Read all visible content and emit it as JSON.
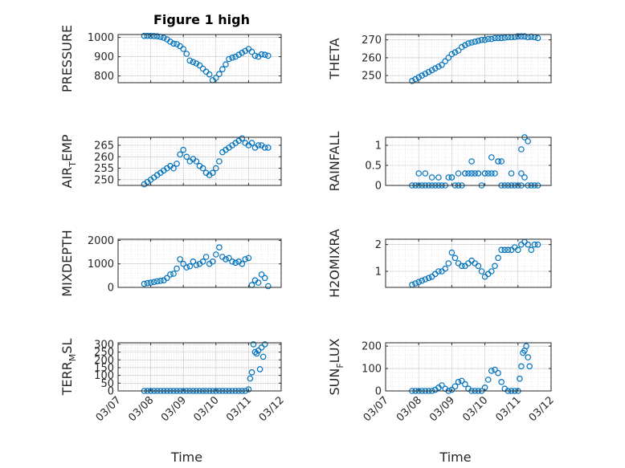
{
  "title": "Figure 1 high",
  "colors": {
    "marker": "#0072BD",
    "axis": "#262626",
    "grid": "#b0b0b0"
  },
  "x_ticks": [
    "03/07",
    "03/08",
    "03/09",
    "03/10",
    "03/11",
    "03/12"
  ],
  "x_label": "Time",
  "chart_data": [
    {
      "type": "scatter",
      "marker": "circle-open",
      "grid": "on",
      "ylabel": "PRESSURE",
      "yticks": [
        800,
        900,
        1000
      ],
      "ylim": [
        765,
        1015
      ],
      "xlim": [
        0,
        5
      ],
      "x": [
        0.8,
        0.9,
        1.0,
        1.1,
        1.2,
        1.3,
        1.4,
        1.5,
        1.6,
        1.7,
        1.8,
        1.9,
        2.0,
        2.1,
        2.2,
        2.3,
        2.4,
        2.5,
        2.6,
        2.7,
        2.8,
        2.9,
        3.0,
        3.1,
        3.2,
        3.3,
        3.4,
        3.5,
        3.6,
        3.7,
        3.8,
        3.9,
        4.0,
        4.1,
        4.2,
        4.3,
        4.4,
        4.5,
        4.6
      ],
      "y": [
        1008,
        1008,
        1008,
        1007,
        1006,
        1003,
        998,
        990,
        978,
        968,
        965,
        955,
        940,
        915,
        880,
        872,
        865,
        855,
        838,
        822,
        808,
        778,
        790,
        810,
        835,
        860,
        888,
        895,
        900,
        910,
        920,
        930,
        940,
        925,
        905,
        900,
        912,
        910,
        905
      ]
    },
    {
      "type": "scatter",
      "marker": "circle-open",
      "grid": "on",
      "ylabel": "THETA",
      "yticks": [
        250,
        260,
        270
      ],
      "ylim": [
        246,
        273
      ],
      "xlim": [
        0,
        5
      ],
      "x": [
        0.8,
        0.9,
        1.0,
        1.1,
        1.2,
        1.3,
        1.4,
        1.5,
        1.6,
        1.7,
        1.8,
        1.9,
        2.0,
        2.1,
        2.2,
        2.3,
        2.4,
        2.5,
        2.6,
        2.7,
        2.8,
        2.9,
        3.0,
        3.1,
        3.2,
        3.3,
        3.4,
        3.5,
        3.6,
        3.7,
        3.8,
        3.9,
        4.0,
        4.1,
        4.2,
        4.3,
        4.4,
        4.5,
        4.6
      ],
      "y": [
        247,
        248,
        249,
        250,
        251,
        252,
        253,
        254,
        255,
        256,
        258,
        260,
        262,
        263,
        264,
        266,
        267,
        268,
        268.5,
        269,
        269.5,
        270,
        270,
        270.5,
        270.5,
        271,
        271,
        271,
        271.2,
        271.5,
        271.5,
        271.7,
        272,
        272,
        272,
        271.5,
        271.8,
        271.5,
        271
      ]
    },
    {
      "type": "scatter",
      "marker": "circle-open",
      "grid": "on",
      "ylabel": "AIR_TEMP",
      "yticks": [
        250,
        255,
        260,
        265
      ],
      "ylim": [
        247.5,
        268.5
      ],
      "xlim": [
        0,
        5
      ],
      "x": [
        0.8,
        0.9,
        1.0,
        1.1,
        1.2,
        1.3,
        1.4,
        1.5,
        1.6,
        1.7,
        1.8,
        1.9,
        2.0,
        2.1,
        2.2,
        2.3,
        2.4,
        2.5,
        2.6,
        2.7,
        2.8,
        2.9,
        3.0,
        3.1,
        3.2,
        3.3,
        3.4,
        3.5,
        3.6,
        3.7,
        3.8,
        3.9,
        4.0,
        4.1,
        4.2,
        4.3,
        4.4,
        4.5,
        4.6
      ],
      "y": [
        248,
        249,
        250,
        251,
        252,
        253,
        254,
        255,
        256,
        255,
        257,
        261,
        263,
        260,
        258,
        259,
        258,
        256,
        255,
        253,
        252,
        253,
        255,
        258,
        262,
        263,
        264,
        265,
        266,
        267,
        268,
        266,
        265,
        266,
        264,
        265,
        265,
        264,
        264
      ]
    },
    {
      "type": "scatter",
      "marker": "circle-open",
      "grid": "on",
      "ylabel": "RAINFALL",
      "yticks": [
        0,
        0.5,
        1
      ],
      "ylim": [
        0,
        1.2
      ],
      "xlim": [
        0,
        5
      ],
      "x": [
        0.8,
        0.9,
        1.0,
        1.1,
        1.2,
        1.3,
        1.4,
        1.5,
        1.6,
        1.7,
        1.8,
        1.9,
        2.0,
        2.1,
        2.2,
        2.3,
        2.4,
        2.5,
        2.6,
        2.7,
        2.8,
        2.9,
        3.0,
        3.1,
        3.2,
        3.3,
        3.4,
        3.5,
        3.6,
        3.7,
        3.8,
        3.9,
        4.0,
        4.1,
        4.2,
        4.3,
        4.4,
        4.5,
        4.6,
        1.0,
        1.2,
        1.4,
        1.6,
        2.0,
        2.2,
        2.4,
        2.6,
        2.8,
        3.0,
        3.2,
        3.4,
        3.5,
        3.8,
        4.1,
        4.2,
        4.3,
        4.1,
        2.6
      ],
      "y": [
        0,
        0,
        0,
        0,
        0,
        0,
        0,
        0,
        0,
        0,
        0,
        0.2,
        0.2,
        0,
        0,
        0,
        0.3,
        0.3,
        0.3,
        0.3,
        0.3,
        0,
        0.3,
        0.3,
        0.3,
        0.3,
        0.6,
        0,
        0,
        0,
        0,
        0,
        0,
        0,
        0.2,
        0,
        0,
        0,
        0,
        0.3,
        0.3,
        0.2,
        0.2,
        0.2,
        0.3,
        0.3,
        0.3,
        0.3,
        0.3,
        0.7,
        0.6,
        0.6,
        0.3,
        0.3,
        1.2,
        1.1,
        0.9,
        0.6
      ]
    },
    {
      "type": "scatter",
      "marker": "circle-open",
      "grid": "on",
      "ylabel": "MIXDEPTH",
      "yticks": [
        0,
        1000,
        2000
      ],
      "ylim": [
        0,
        2050
      ],
      "xlim": [
        0,
        5
      ],
      "x": [
        0.8,
        0.9,
        1.0,
        1.1,
        1.2,
        1.3,
        1.4,
        1.5,
        1.6,
        1.7,
        1.8,
        1.9,
        2.0,
        2.1,
        2.2,
        2.3,
        2.4,
        2.5,
        2.6,
        2.7,
        2.8,
        2.9,
        3.0,
        3.1,
        3.2,
        3.3,
        3.4,
        3.5,
        3.6,
        3.7,
        3.8,
        3.9,
        4.0,
        4.1,
        4.2,
        4.3,
        4.4,
        4.5,
        4.6
      ],
      "y": [
        150,
        180,
        200,
        230,
        260,
        280,
        300,
        400,
        550,
        580,
        800,
        1200,
        1000,
        850,
        900,
        1100,
        950,
        1000,
        1100,
        1300,
        1000,
        1100,
        1400,
        1700,
        1300,
        1200,
        1250,
        1100,
        1050,
        1100,
        1000,
        1200,
        1250,
        100,
        300,
        200,
        550,
        400,
        50
      ]
    },
    {
      "type": "scatter",
      "marker": "circle-open",
      "grid": "on",
      "ylabel": "H2OMIXRA",
      "yticks": [
        1,
        2
      ],
      "ylim": [
        0.4,
        2.2
      ],
      "xlim": [
        0,
        5
      ],
      "x": [
        0.8,
        0.9,
        1.0,
        1.1,
        1.2,
        1.3,
        1.4,
        1.5,
        1.6,
        1.7,
        1.8,
        1.9,
        2.0,
        2.1,
        2.2,
        2.3,
        2.4,
        2.5,
        2.6,
        2.7,
        2.8,
        2.9,
        3.0,
        3.1,
        3.2,
        3.3,
        3.4,
        3.5,
        3.6,
        3.7,
        3.8,
        3.9,
        4.0,
        4.1,
        4.2,
        4.3,
        4.4,
        4.5,
        4.6
      ],
      "y": [
        0.5,
        0.55,
        0.6,
        0.65,
        0.7,
        0.75,
        0.8,
        0.9,
        1.0,
        1.0,
        1.1,
        1.3,
        1.7,
        1.5,
        1.3,
        1.2,
        1.2,
        1.3,
        1.4,
        1.3,
        1.2,
        1.0,
        0.8,
        0.9,
        1.0,
        1.2,
        1.5,
        1.8,
        1.8,
        1.8,
        1.8,
        1.9,
        1.8,
        2.0,
        2.1,
        2.0,
        1.8,
        2.0,
        2.0
      ]
    },
    {
      "type": "scatter",
      "marker": "circle-open",
      "grid": "on",
      "ylabel": "TERR_MSL",
      "yticks": [
        0,
        50,
        100,
        150,
        200,
        250,
        300
      ],
      "ylim": [
        0,
        310
      ],
      "xlim": [
        0,
        5
      ],
      "x": [
        0.8,
        0.9,
        1.0,
        1.1,
        1.2,
        1.3,
        1.4,
        1.5,
        1.6,
        1.7,
        1.8,
        1.9,
        2.0,
        2.1,
        2.2,
        2.3,
        2.4,
        2.5,
        2.6,
        2.7,
        2.8,
        2.9,
        3.0,
        3.1,
        3.2,
        3.3,
        3.4,
        3.5,
        3.6,
        3.7,
        3.8,
        3.9,
        4.0,
        4.05,
        4.1,
        4.15,
        4.2,
        4.25,
        4.3,
        4.35,
        4.4,
        4.45,
        4.5
      ],
      "y": [
        0,
        0,
        0,
        0,
        0,
        0,
        0,
        0,
        0,
        0,
        0,
        0,
        0,
        0,
        0,
        0,
        0,
        0,
        0,
        0,
        0,
        0,
        0,
        0,
        0,
        0,
        0,
        0,
        0,
        0,
        0,
        0,
        10,
        80,
        120,
        300,
        250,
        240,
        260,
        140,
        280,
        220,
        300
      ]
    },
    {
      "type": "scatter",
      "marker": "circle-open",
      "grid": "on",
      "ylabel": "SUN_FLUX",
      "yticks": [
        0,
        100,
        200
      ],
      "ylim": [
        0,
        215
      ],
      "xlim": [
        0,
        5
      ],
      "x": [
        0.8,
        0.9,
        1.0,
        1.1,
        1.2,
        1.3,
        1.4,
        1.5,
        1.6,
        1.7,
        1.8,
        1.9,
        2.0,
        2.1,
        2.2,
        2.3,
        2.4,
        2.5,
        2.6,
        2.7,
        2.8,
        2.9,
        3.0,
        3.1,
        3.2,
        3.3,
        3.4,
        3.5,
        3.6,
        3.7,
        3.8,
        3.9,
        4.0,
        4.05,
        4.1,
        4.15,
        4.2,
        4.25,
        4.3,
        4.35
      ],
      "y": [
        0,
        0,
        0,
        0,
        0,
        0,
        0,
        5,
        15,
        25,
        10,
        0,
        5,
        20,
        40,
        45,
        30,
        10,
        0,
        0,
        0,
        0,
        15,
        50,
        90,
        95,
        80,
        40,
        10,
        0,
        0,
        0,
        0,
        55,
        110,
        170,
        180,
        200,
        150,
        110
      ]
    }
  ]
}
